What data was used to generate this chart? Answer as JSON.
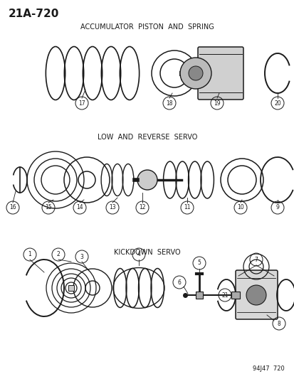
{
  "title": "21A-720",
  "bg_color": "#ffffff",
  "line_color": "#1a1a1a",
  "section_labels": {
    "kickdown": "KICKDOWN  SERVO",
    "low_reverse": "LOW  AND  REVERSE  SERVO",
    "accumulator": "ACCUMULATOR  PISTON  AND  SPRING"
  },
  "footer": "94J47  720"
}
